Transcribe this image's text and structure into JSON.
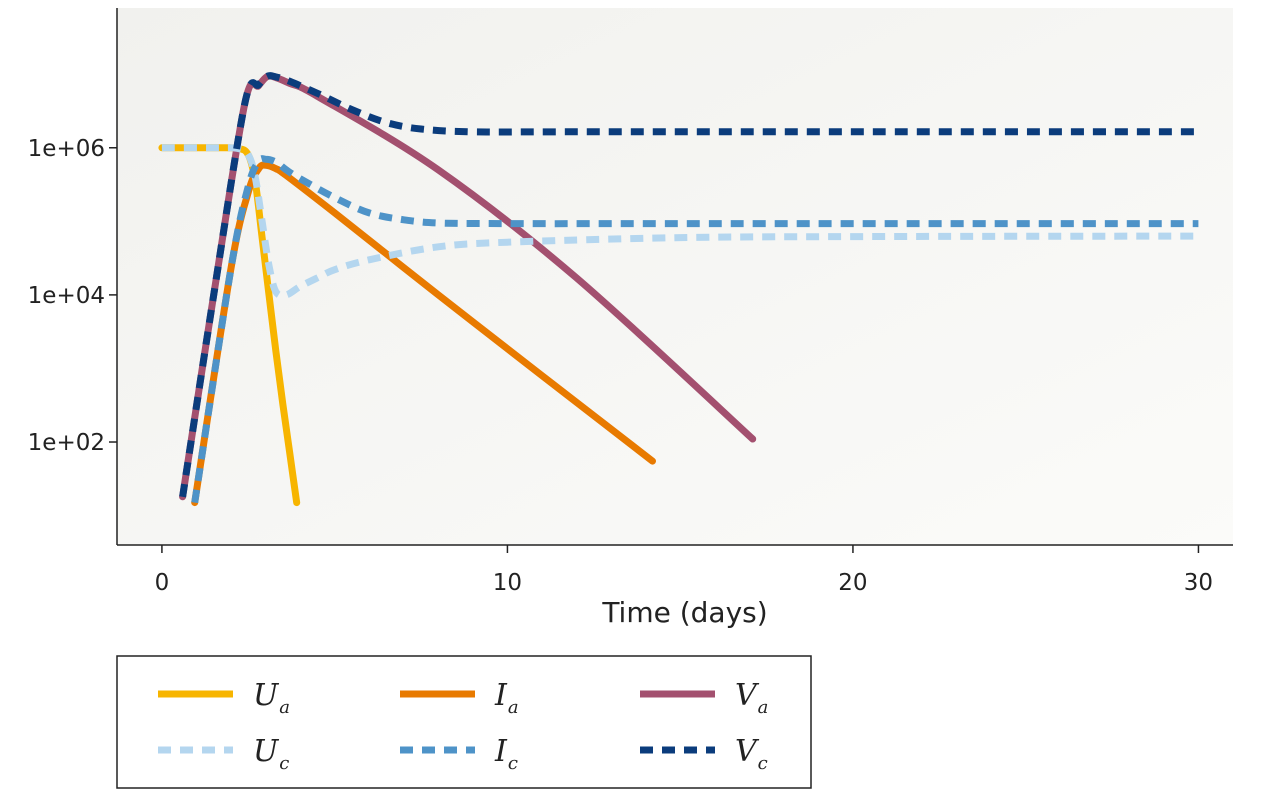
{
  "chart_data": {
    "type": "line",
    "title": "",
    "xlabel": "Time (days)",
    "ylabel": "",
    "xlim": [
      -1.3,
      31
    ],
    "ylim_log10": [
      0.6,
      7.9
    ],
    "y_scale": "log",
    "x_ticks": [
      0,
      10,
      20,
      30
    ],
    "x_tick_labels": [
      "0",
      "10",
      "20",
      "30"
    ],
    "y_ticks": [
      100,
      10000,
      1000000
    ],
    "y_tick_labels": [
      "1e+02",
      "1e+04",
      "1e+06"
    ],
    "legend_placement": "bottom",
    "series": [
      {
        "key": "U_a",
        "main": "U",
        "sub": "a",
        "color": "#F7B500",
        "dashed": false,
        "x": [
          0,
          1.5,
          2.2,
          2.5,
          2.7,
          2.9,
          3.1,
          3.3,
          3.5,
          3.7,
          3.9
        ],
        "y": [
          1000000,
          1000000,
          980000,
          800000,
          350000,
          60000,
          10000,
          1700,
          330,
          70,
          15
        ]
      },
      {
        "key": "I_a",
        "main": "I",
        "sub": "a",
        "color": "#E87A00",
        "dashed": false,
        "x": [
          0.95,
          2.0,
          2.5,
          2.8,
          3.0,
          3.3,
          3.6,
          5,
          8,
          11,
          14.2
        ],
        "y": [
          15,
          23000,
          250000,
          520000,
          580000,
          520000,
          420000,
          130000,
          10000,
          800,
          55
        ]
      },
      {
        "key": "V_a",
        "main": "V",
        "sub": "a",
        "color": "#A3506F",
        "dashed": false,
        "x": [
          0.6,
          1.5,
          2.4,
          2.8,
          3.05,
          3.3,
          3.7,
          4.5,
          8,
          12,
          17.1
        ],
        "y": [
          18,
          10000,
          4000000,
          7000000,
          9300000,
          9000000,
          7500000,
          5000000,
          500000,
          17000,
          110
        ]
      },
      {
        "key": "U_c",
        "main": "U",
        "sub": "c",
        "color": "#B4D6EF",
        "dashed": true,
        "x": [
          0,
          1.5,
          2.2,
          2.5,
          2.7,
          2.9,
          3.1,
          3.3,
          3.6,
          4.0,
          4.5,
          5,
          6,
          8,
          10,
          15,
          20,
          30
        ],
        "y": [
          1000000,
          1000000,
          980000,
          800000,
          400000,
          100000,
          25000,
          11000,
          10000,
          13000,
          17000,
          22000,
          30000,
          45000,
          52000,
          60000,
          62000,
          63000
        ]
      },
      {
        "key": "I_c",
        "main": "I",
        "sub": "c",
        "color": "#4E93C8",
        "dashed": true,
        "x": [
          0.95,
          2.0,
          2.5,
          2.8,
          3.0,
          3.3,
          3.6,
          4,
          5,
          6,
          7,
          8,
          10,
          15,
          20,
          30
        ],
        "y": [
          15,
          23000,
          300000,
          650000,
          700000,
          640000,
          500000,
          380000,
          210000,
          130000,
          105000,
          95000,
          93000,
          93000,
          93000,
          93000
        ]
      },
      {
        "key": "V_c",
        "main": "V",
        "sub": "c",
        "color": "#0B3C7C",
        "dashed": true,
        "x": [
          0.6,
          1.5,
          2.4,
          2.8,
          3.05,
          3.3,
          3.7,
          4.5,
          5.5,
          6.5,
          7.5,
          9,
          12,
          20,
          30
        ],
        "y": [
          18,
          10000,
          4000000,
          7200000,
          9400000,
          9200000,
          8000000,
          5500000,
          3300000,
          2200000,
          1800000,
          1650000,
          1650000,
          1650000,
          1650000
        ]
      }
    ]
  }
}
